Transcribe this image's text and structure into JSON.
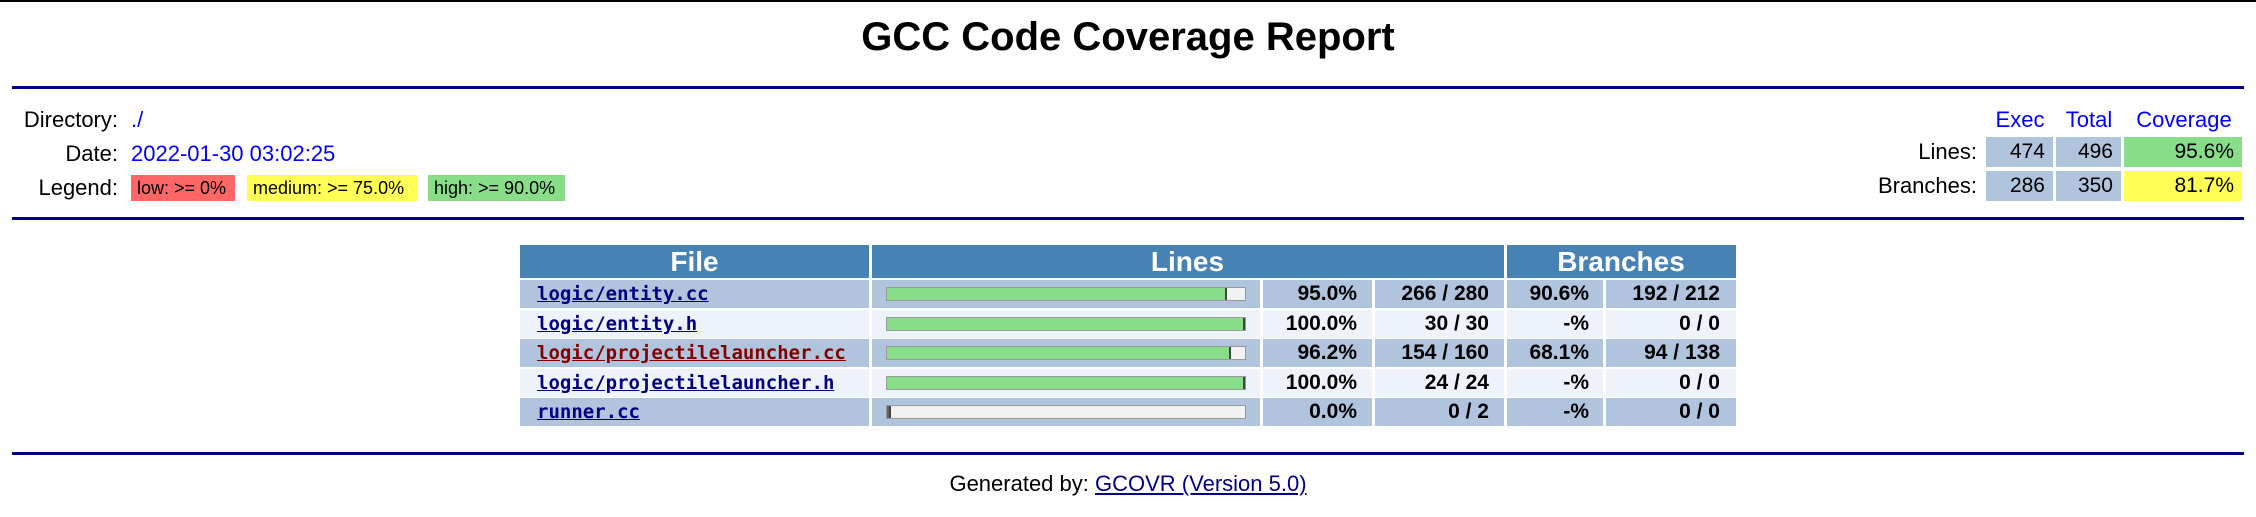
{
  "title": "GCC Code Coverage Report",
  "info": {
    "directory_label": "Directory:",
    "directory_value": "./",
    "date_label": "Date:",
    "date_value": "2022-01-30 03:02:25",
    "legend_label": "Legend:",
    "legend_low": "low: >= 0%",
    "legend_medium": "medium: >= 75.0%",
    "legend_high": "high: >= 90.0%"
  },
  "summary": {
    "headers": {
      "exec": "Exec",
      "total": "Total",
      "coverage": "Coverage"
    },
    "lines": {
      "label": "Lines:",
      "exec": "474",
      "total": "496",
      "coverage": "95.6%"
    },
    "branches": {
      "label": "Branches:",
      "exec": "286",
      "total": "350",
      "coverage": "81.7%"
    }
  },
  "table": {
    "headers": {
      "file": "File",
      "lines": "Lines",
      "branches": "Branches"
    },
    "rows": [
      {
        "file": "logic/entity.cc",
        "line_fraction": 0.95,
        "line_pct": "95.0%",
        "line_count": "266 / 280",
        "branch_pct": "90.6%",
        "branch_count": "192 / 212"
      },
      {
        "file": "logic/entity.h",
        "line_fraction": 1.0,
        "line_pct": "100.0%",
        "line_count": "30 / 30",
        "branch_pct": "-%",
        "branch_count": "0 / 0"
      },
      {
        "file": "logic/projectilelauncher.cc",
        "line_fraction": 0.962,
        "line_pct": "96.2%",
        "line_count": "154 / 160",
        "branch_pct": "68.1%",
        "branch_count": "94 / 138"
      },
      {
        "file": "logic/projectilelauncher.h",
        "line_fraction": 1.0,
        "line_pct": "100.0%",
        "line_count": "24 / 24",
        "branch_pct": "-%",
        "branch_count": "0 / 0"
      },
      {
        "file": "runner.cc",
        "line_fraction": 0.0,
        "line_pct": "0.0%",
        "line_count": "0 / 2",
        "branch_pct": "-%",
        "branch_count": "0 / 0"
      }
    ]
  },
  "footer": {
    "prefix": "Generated by:",
    "link": "GCOVR (Version 5.0)"
  },
  "colors": {
    "low": "#ff6666",
    "medium": "#ffff55",
    "high": "#88dd88",
    "header_bg": "#4682b4",
    "rule": "#000080"
  }
}
